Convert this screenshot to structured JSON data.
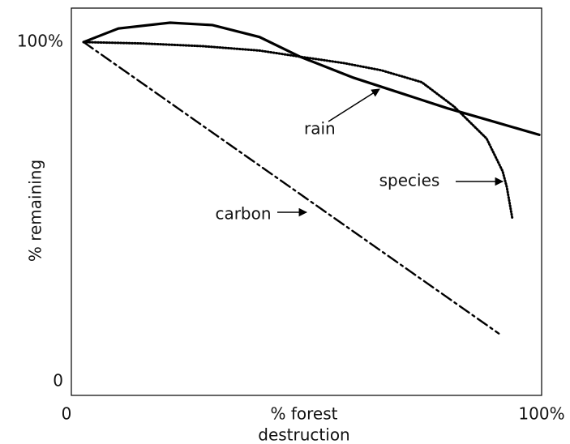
{
  "chart_data": {
    "type": "line",
    "xlabel": [
      "% forest",
      "destruction"
    ],
    "ylabel": "% remaining",
    "xlim": [
      0,
      100
    ],
    "xticks": [
      0,
      {
        "value": 100,
        "label": "100%"
      }
    ],
    "ylim": [
      -4,
      110
    ],
    "yticks": [
      0,
      {
        "value": 100,
        "label": "100%"
      }
    ],
    "series": [
      {
        "name": "rain",
        "color": "#000000",
        "dash": "solid",
        "x": [
          2.6,
          10,
          21,
          30,
          40,
          48.6,
          60,
          70,
          80,
          90,
          99.5
        ],
        "values": [
          100,
          104,
          105.7,
          105,
          101.5,
          95.7,
          89.5,
          85,
          80.5,
          76.5,
          72.7
        ]
      },
      {
        "name": "species",
        "color": "#000000",
        "dash": "dotted",
        "x": [
          2.6,
          15,
          27.9,
          40,
          48.6,
          58,
          65.9,
          74.5,
          81.4,
          88.3,
          91.7,
          92.6,
          93.8
        ],
        "values": [
          100,
          99.6,
          98.8,
          97.5,
          95.7,
          93.8,
          91.7,
          88.2,
          81,
          71.6,
          62,
          57.3,
          47.9
        ]
      },
      {
        "name": "carbon",
        "color": "#000000",
        "dash": "dashdot",
        "x": [
          2.6,
          90.9
        ],
        "values": [
          100,
          14.2
        ]
      }
    ]
  }
}
